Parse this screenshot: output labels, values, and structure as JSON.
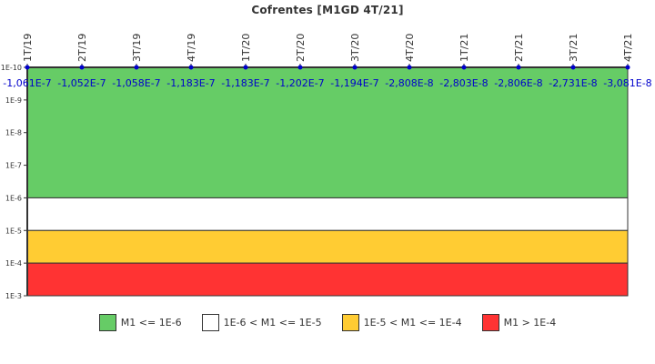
{
  "title": "Cofrentes [M1GD 4T/21]",
  "chart_data": {
    "type": "line",
    "title": "Cofrentes [M1GD 4T/21]",
    "xlabel": "",
    "ylabel": "",
    "y_scale": "log",
    "y_ticks": [
      "1E-10",
      "1E-9",
      "1E-8",
      "1E-7",
      "1E-6",
      "1E-5",
      "1E-4",
      "1E-3"
    ],
    "ylim": [
      "1E-10",
      "1E-3"
    ],
    "y_inverted": true,
    "categories": [
      "1T/19",
      "2T/19",
      "3T/19",
      "4T/19",
      "1T/20",
      "2T/20",
      "3T/20",
      "4T/20",
      "1T/21",
      "2T/21",
      "3T/21",
      "4T/21"
    ],
    "series": [
      {
        "name": "M1",
        "values": [
          -1.061e-07,
          -1.052e-07,
          -1.058e-07,
          -1.183e-07,
          -1.183e-07,
          -1.202e-07,
          -1.194e-07,
          -2.808e-08,
          -2.803e-08,
          -2.806e-08,
          -2.731e-08,
          -3.081e-08
        ],
        "labels": [
          "-1,061E-7",
          "-1,052E-7",
          "-1,058E-7",
          "-1,183E-7",
          "-1,183E-7",
          "-1,202E-7",
          "-1,194E-7",
          "-2,808E-8",
          "-2,803E-8",
          "-2,806E-8",
          "-2,731E-8",
          "-3,081E-8"
        ],
        "color": "#0000cc"
      }
    ],
    "bands": [
      {
        "label": "M1 <= 1E-6",
        "from": "1E-10",
        "to": "1E-6",
        "color": "#66cc66"
      },
      {
        "label": "1E-6 < M1 <= 1E-5",
        "from": "1E-6",
        "to": "1E-5",
        "color": "#ffffff"
      },
      {
        "label": "1E-5 < M1 <= 1E-4",
        "from": "1E-5",
        "to": "1E-4",
        "color": "#ffcc33"
      },
      {
        "label": "M1 > 1E-4",
        "from": "1E-4",
        "to": "1E-3",
        "color": "#ff3333"
      }
    ],
    "grid": false,
    "legend_position": "bottom"
  },
  "legend": [
    {
      "label": "M1 <= 1E-6",
      "color": "#66cc66"
    },
    {
      "label": "1E-6 < M1 <= 1E-5",
      "color": "#ffffff"
    },
    {
      "label": "1E-5 < M1 <= 1E-4",
      "color": "#ffcc33"
    },
    {
      "label": "M1 > 1E-4",
      "color": "#ff3333"
    }
  ]
}
